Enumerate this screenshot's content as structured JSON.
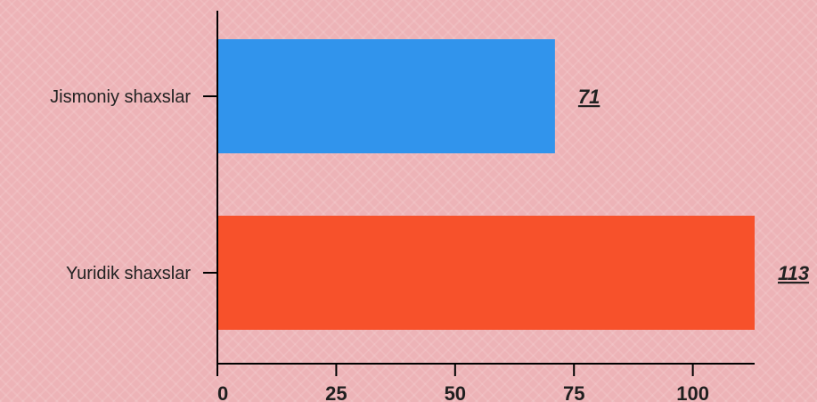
{
  "chart_data": {
    "type": "bar",
    "orientation": "horizontal",
    "categories": [
      "Jismoniy shaxslar",
      "Yuridik shaxslar"
    ],
    "values": [
      71,
      113
    ],
    "value_labels": [
      "71",
      "113"
    ],
    "colors": [
      "#3194ec",
      "#f7512b"
    ],
    "xticks": [
      0,
      25,
      50,
      75,
      100
    ],
    "xtick_labels": [
      "0",
      "25",
      "50",
      "75",
      "100"
    ],
    "xlim": [
      0,
      113
    ],
    "title": "",
    "xlabel": "",
    "ylabel": "",
    "grid": false
  }
}
